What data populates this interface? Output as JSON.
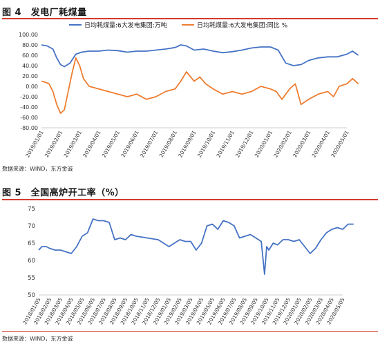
{
  "figure1": {
    "title": "图 4　发电厂耗煤量",
    "source": "数据来源：WIND，东方金诚",
    "chart_data": {
      "type": "line",
      "title": "发电厂耗煤量",
      "xlabel": "",
      "ylabel": "",
      "ylim": [
        -80,
        100
      ],
      "yticks": [
        "100.00",
        "80.00",
        "60.00",
        "40.00",
        "20.00",
        "0.00",
        "-20.00",
        "-40.00",
        "-60.00",
        "-80.00"
      ],
      "x_tick_labels": [
        "2019/01/01",
        "2019/02/01",
        "2019/03/01",
        "2019/04/01",
        "2019/05/01",
        "2019/06/01",
        "2019/07/01",
        "2019/08/01",
        "2019/09/01",
        "2019/10/01",
        "2019/11/01",
        "2019/12/01",
        "2020/01/01",
        "2020/02/01",
        "2020/03/01",
        "2020/04/01",
        "2020/05/01"
      ],
      "series": [
        {
          "name": "日均耗煤量:6大发电集团:万吨",
          "color": "#4472c4",
          "x": [
            0,
            0.3,
            0.6,
            0.8,
            1.0,
            1.2,
            1.5,
            1.8,
            2.1,
            2.5,
            3,
            3.5,
            4,
            4.5,
            5,
            5.5,
            6,
            6.5,
            7,
            7.3,
            7.6,
            8,
            8.5,
            9,
            9.5,
            10,
            10.5,
            11,
            11.5,
            12,
            12.4,
            12.8,
            13.2,
            13.6,
            14,
            14.5,
            15,
            15.5,
            16,
            16.3,
            16.6
          ],
          "values": [
            80,
            78,
            72,
            55,
            42,
            38,
            45,
            62,
            66,
            68,
            68,
            70,
            69,
            66,
            68,
            68,
            70,
            72,
            75,
            80,
            78,
            70,
            72,
            68,
            65,
            67,
            70,
            74,
            76,
            76,
            70,
            45,
            40,
            42,
            50,
            55,
            57,
            57,
            62,
            68,
            60
          ]
        },
        {
          "name": "日均耗煤量:6大发电集团:同比 %",
          "color": "#ed7d31",
          "x": [
            0,
            0.2,
            0.4,
            0.6,
            0.8,
            1.0,
            1.2,
            1.4,
            1.6,
            1.8,
            2.0,
            2.2,
            2.5,
            3,
            3.5,
            4,
            4.5,
            5,
            5.5,
            6,
            6.5,
            7,
            7.3,
            7.6,
            8,
            8.3,
            8.6,
            9,
            9.5,
            10,
            10.5,
            11,
            11.5,
            12,
            12.3,
            12.6,
            13,
            13.3,
            13.6,
            14,
            14.5,
            15,
            15.3,
            15.6,
            16,
            16.3,
            16.6
          ],
          "values": [
            10,
            8,
            5,
            -10,
            -35,
            -52,
            -45,
            -10,
            25,
            55,
            40,
            15,
            0,
            -5,
            -10,
            -15,
            -20,
            -15,
            -25,
            -20,
            -10,
            -5,
            10,
            28,
            10,
            18,
            5,
            -5,
            -15,
            -10,
            -15,
            -10,
            0,
            -5,
            -10,
            -25,
            -5,
            5,
            -35,
            -25,
            -15,
            -10,
            -20,
            0,
            5,
            15,
            5
          ]
        }
      ]
    }
  },
  "figure2": {
    "title": "图 5　全国高炉开工率（%）",
    "source": "数据来源：WIND，东方金诚",
    "chart_data": {
      "type": "line",
      "title": "全国高炉开工率（%）",
      "xlabel": "",
      "ylabel": "",
      "ylim": [
        50,
        75
      ],
      "yticks": [
        "75",
        "70",
        "65",
        "60",
        "55",
        "50"
      ],
      "x_tick_labels": [
        "2018/01/05",
        "2018/02/05",
        "2018/03/05",
        "2018/04/05",
        "2018/05/05",
        "2018/06/05",
        "2018/07/05",
        "2018/08/05",
        "2018/09/05",
        "2018/10/05",
        "2018/11/05",
        "2018/12/05",
        "2019/01/05",
        "2019/02/05",
        "2019/03/05",
        "2019/04/05",
        "2019/05/05",
        "2019/06/05",
        "2019/07/05",
        "2019/08/05",
        "2019/09/05",
        "2019/10/05",
        "2019/11/05",
        "2019/12/05",
        "2020/01/05",
        "2020/02/05",
        "2020/03/05",
        "2020/04/05",
        "2020/05/05"
      ],
      "series": [
        {
          "name": "全国高炉开工率",
          "color": "#4472c4",
          "x": [
            0,
            0.3,
            0.7,
            1,
            1.5,
            2,
            2.5,
            3,
            3.5,
            4,
            4.5,
            5,
            5.5,
            6,
            6.5,
            7,
            7.5,
            8,
            8.5,
            9,
            10,
            11,
            11.5,
            12,
            12.5,
            13,
            13.5,
            14,
            14.5,
            15,
            15.5,
            16,
            16.5,
            17,
            17.5,
            18,
            18.5,
            19,
            19.5,
            20,
            20.5,
            20.8,
            21,
            21.2,
            21.6,
            22,
            22.5,
            23,
            23.5,
            24,
            24.5,
            25,
            25.5,
            26,
            26.5,
            27,
            27.5,
            28,
            28.5,
            29
          ],
          "values": [
            63,
            64,
            64,
            63.5,
            63,
            63,
            62.5,
            62,
            64,
            67,
            68,
            72,
            71.5,
            71.5,
            71,
            66,
            66.5,
            66,
            67.5,
            67,
            66.5,
            66,
            65,
            64,
            65,
            66,
            65.5,
            65.5,
            63,
            65,
            70,
            70.5,
            69,
            71.5,
            71,
            70,
            66.5,
            67,
            67.5,
            66.5,
            65.5,
            56,
            64,
            63,
            65,
            64.5,
            66,
            66,
            65.5,
            66,
            64,
            62,
            63.5,
            66,
            68,
            69,
            69.5,
            69,
            70.5,
            70.5
          ]
        }
      ]
    }
  }
}
